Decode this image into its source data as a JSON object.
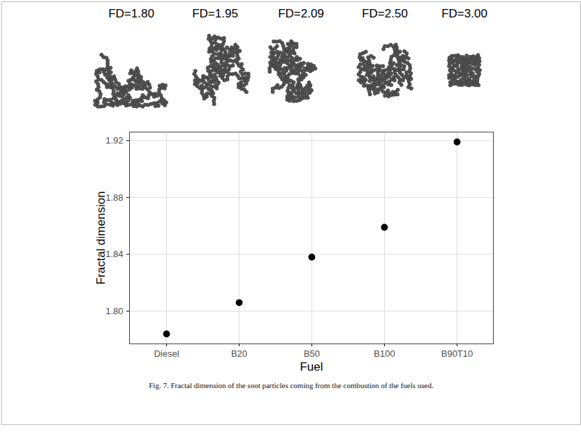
{
  "chart_data": {
    "type": "scatter",
    "x_label": "Fuel",
    "y_label": "Fractal dimension",
    "categories": [
      "Diesel",
      "B20",
      "B50",
      "B100",
      "B90T10"
    ],
    "values": [
      1.784,
      1.806,
      1.838,
      1.859,
      1.919
    ],
    "color": "#000000",
    "marker": "circle",
    "ylim": [
      1.777,
      1.926
    ],
    "yticks": [
      {
        "value": 1.8,
        "label": "1.80"
      },
      {
        "value": 1.84,
        "label": "1.84"
      },
      {
        "value": 1.88,
        "label": "1.88"
      },
      {
        "value": 1.92,
        "label": "1.92"
      }
    ],
    "grid": true,
    "annotations": [
      "FD=1.80",
      "FD=1.95",
      "FD=2.09",
      "FD=2.50",
      "FD=3.00"
    ],
    "caption": "Fig. 7. Fractal dimension of the soot particles coming from the combustion of the fuels used."
  }
}
